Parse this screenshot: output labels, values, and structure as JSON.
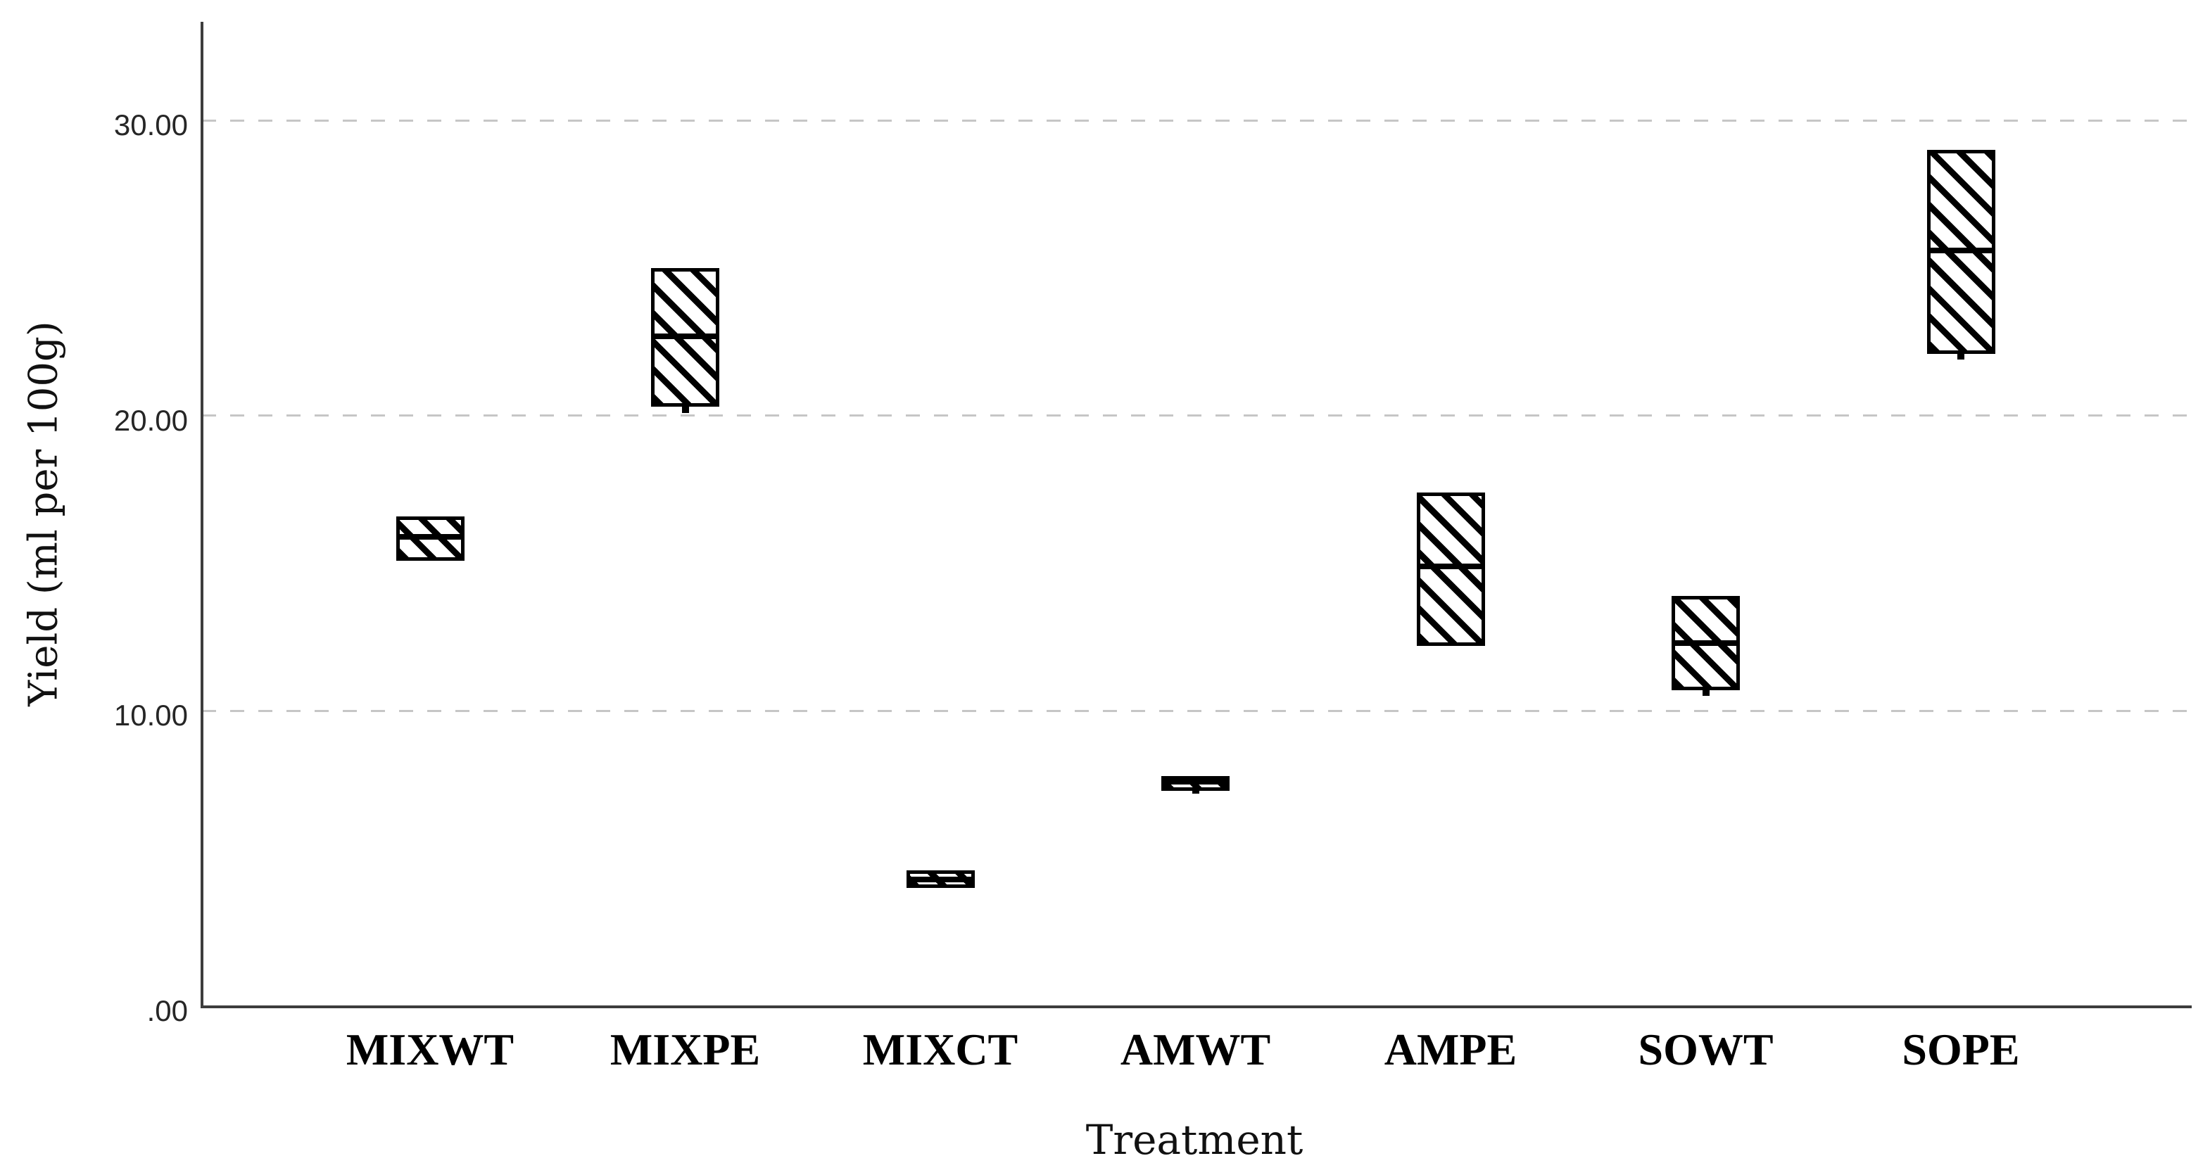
{
  "chart_data": {
    "type": "boxplot",
    "title": "",
    "xlabel": "Treatment",
    "ylabel": "Yield (ml per 100g)",
    "categories": [
      "MIXWT",
      "MIXPE",
      "MIXCT",
      "AMWT",
      "AMPE",
      "SOWT",
      "SOPE"
    ],
    "yticks": [
      ".00",
      "10.00",
      "20.00",
      "30.00"
    ],
    "ytick_values": [
      0,
      10,
      20,
      30
    ],
    "ylim": [
      0,
      33.3
    ],
    "grid": {
      "horizontal_dashed_at": [
        10,
        20,
        30
      ],
      "style": "dashed",
      "color": "#c6c6c6"
    },
    "legend": "none",
    "boxes": [
      {
        "category": "MIXWT",
        "q1": 15.1,
        "median": 15.9,
        "q3": 16.6,
        "whisker_min": null
      },
      {
        "category": "MIXPE",
        "q1": 20.3,
        "median": 22.7,
        "q3": 25.0,
        "whisker_min": 20.1
      },
      {
        "category": "MIXCT",
        "q1": 4.0,
        "median": 4.3,
        "q3": 4.6,
        "whisker_min": null
      },
      {
        "category": "AMWT",
        "q1": 7.3,
        "median": 7.6,
        "q3": 7.8,
        "whisker_min": 7.2
      },
      {
        "category": "AMPE",
        "q1": 12.2,
        "median": 14.9,
        "q3": 17.4,
        "whisker_min": null
      },
      {
        "category": "SOWT",
        "q1": 10.7,
        "median": 12.3,
        "q3": 13.9,
        "whisker_min": 10.5
      },
      {
        "category": "SOPE",
        "q1": 22.1,
        "median": 25.6,
        "q3": 29.0,
        "whisker_min": 21.9
      }
    ],
    "style": {
      "box_fill": "diagonal-hatch",
      "hatch_direction": "\\",
      "box_color": "#000000",
      "grid_color": "#c6c6c6",
      "axis_color": "#3d3d3d",
      "background": "#ffffff"
    }
  }
}
